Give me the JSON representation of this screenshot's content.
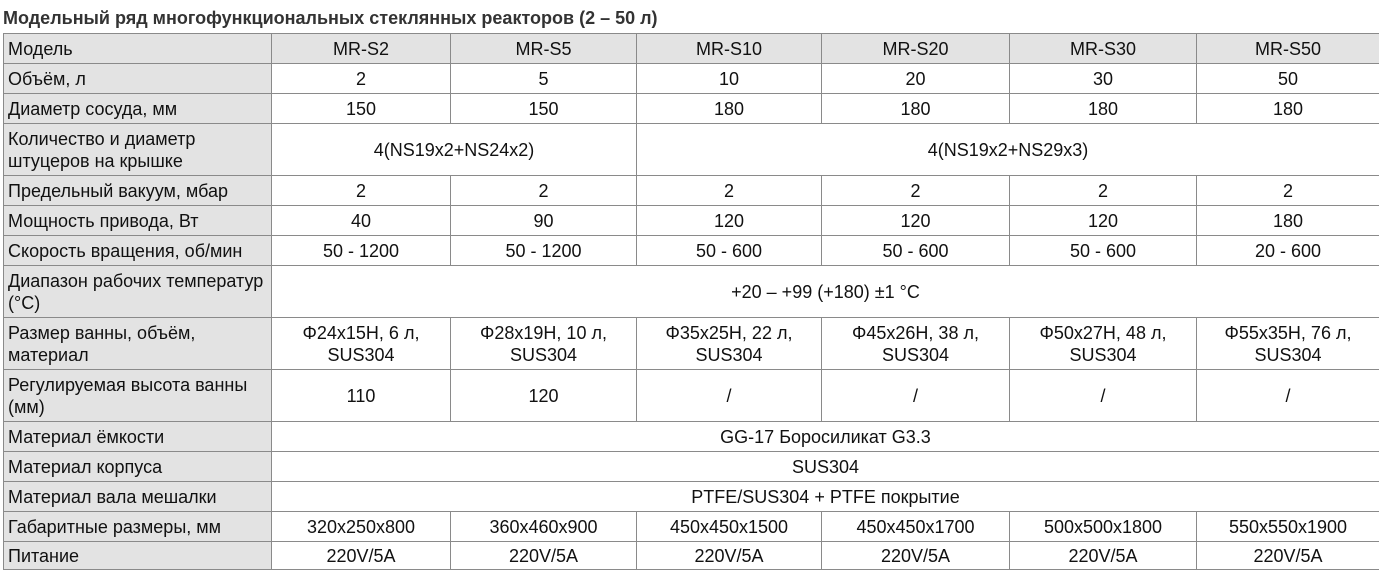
{
  "title": "Модельный ряд многофункциональных стеклянных реакторов (2 – 50 л)",
  "table": {
    "header_label": "Модель",
    "models": [
      "MR-S2",
      "MR-S5",
      "MR-S10",
      "MR-S20",
      "MR-S30",
      "MR-S50"
    ],
    "rows": {
      "volume": {
        "label": "Объём, л",
        "values": [
          "2",
          "5",
          "10",
          "20",
          "30",
          "50"
        ]
      },
      "diameter": {
        "label": "Диаметр сосуда, мм",
        "values": [
          "150",
          "150",
          "180",
          "180",
          "180",
          "180"
        ]
      },
      "ports": {
        "label": "Количество и диаметр штуцеров на крышке",
        "values": [
          "4(NS19x2+NS24x2)",
          "4(NS19x2+NS29x3)"
        ]
      },
      "vacuum": {
        "label": "Предельный вакуум, мбар",
        "values": [
          "2",
          "2",
          "2",
          "2",
          "2",
          "2"
        ]
      },
      "power": {
        "label": "Мощность привода, Вт",
        "values": [
          "40",
          "90",
          "120",
          "120",
          "120",
          "180"
        ]
      },
      "speed": {
        "label": "Скорость вращения, об/мин",
        "values": [
          "50 - 1200",
          "50 - 1200",
          "50 - 600",
          "50 - 600",
          "50 - 600",
          "20 - 600"
        ]
      },
      "temp": {
        "label": "Диапазон рабочих температур (°C)",
        "value": "+20 – +99 (+180) ±1 °C"
      },
      "bath": {
        "label": "Размер ванны, объём, материал",
        "values": [
          "Φ24x15H, 6 л, SUS304",
          "Φ28x19H, 10 л, SUS304",
          "Φ35x25H, 22 л, SUS304",
          "Φ45x26H, 38 л, SUS304",
          "Φ50x27H, 48 л, SUS304",
          "Φ55x35H, 76 л, SUS304"
        ]
      },
      "bath_height": {
        "label": "Регулируемая высота ванны (мм)",
        "values": [
          "110",
          "120",
          "/",
          "/",
          "/",
          "/"
        ]
      },
      "vessel_material": {
        "label": "Материал ёмкости",
        "value": "GG-17 Боросиликат G3.3"
      },
      "body_material": {
        "label": "Материал корпуса",
        "value": "SUS304"
      },
      "shaft_material": {
        "label": "Материал вала мешалки",
        "value": "PTFE/SUS304 + PTFE покрытие"
      },
      "dimensions": {
        "label": "Габаритные размеры, мм",
        "values": [
          "320x250x800",
          "360x460x900",
          "450x450x1500",
          "450x450x1700",
          "500x500x1800",
          "550x550x1900"
        ]
      },
      "power_supply": {
        "label": "Питание",
        "values": [
          "220V/5A",
          "220V/5A",
          "220V/5A",
          "220V/5A",
          "220V/5A",
          "220V/5A"
        ]
      }
    }
  }
}
